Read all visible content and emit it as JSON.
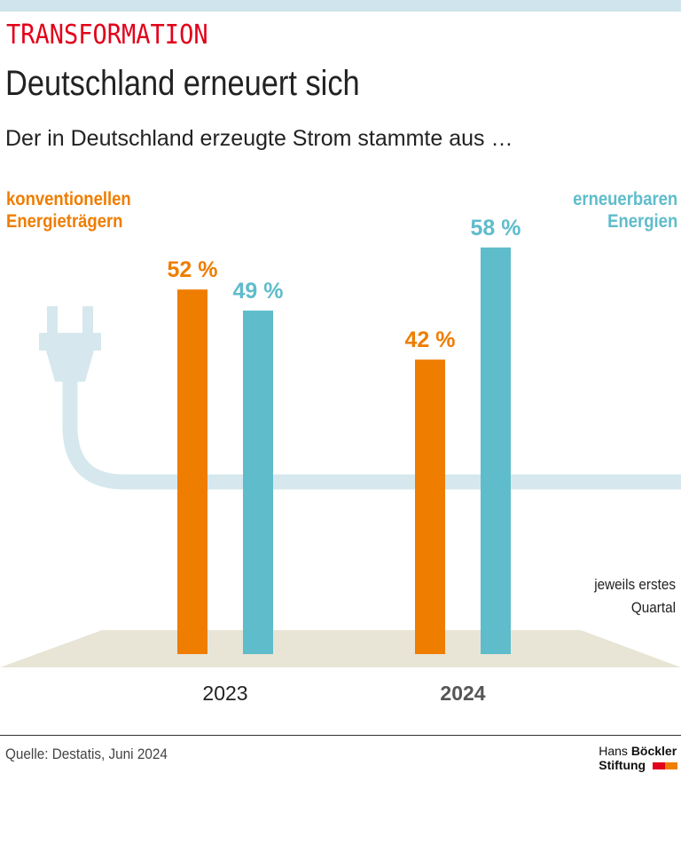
{
  "header": {
    "kicker": "TRANSFORMATION",
    "title": "Deutschland erneuert sich",
    "subtitle": "Der in Deutschland erzeugte Strom stammte aus …"
  },
  "note": {
    "line1": "jeweils erstes",
    "line2": "Quartal"
  },
  "footer": {
    "source": "Quelle: Destatis, Juni 2024",
    "logo_line1_a": "Hans",
    "logo_line1_b": "Böckler",
    "logo_line2": "Stiftung"
  },
  "colors": {
    "conventional": "#ef7d00",
    "renewable": "#5fbccb",
    "cable": "#d6e8ee",
    "floor": "#e8e5d6",
    "kicker": "#e2001a"
  },
  "chart_data": {
    "type": "bar",
    "categories": [
      "2023",
      "2024"
    ],
    "series": [
      {
        "name": "konventionellen Energieträgern",
        "legend_lines": [
          "konventionellen",
          "Energieträgern"
        ],
        "values": [
          52,
          42
        ],
        "labels": [
          "52 %",
          "42 %"
        ]
      },
      {
        "name": "erneuerbaren Energien",
        "legend_lines": [
          "erneuerbaren",
          "Energien"
        ],
        "values": [
          49,
          58
        ],
        "labels": [
          "49 %",
          "58 %"
        ]
      }
    ],
    "unit": "%"
  }
}
